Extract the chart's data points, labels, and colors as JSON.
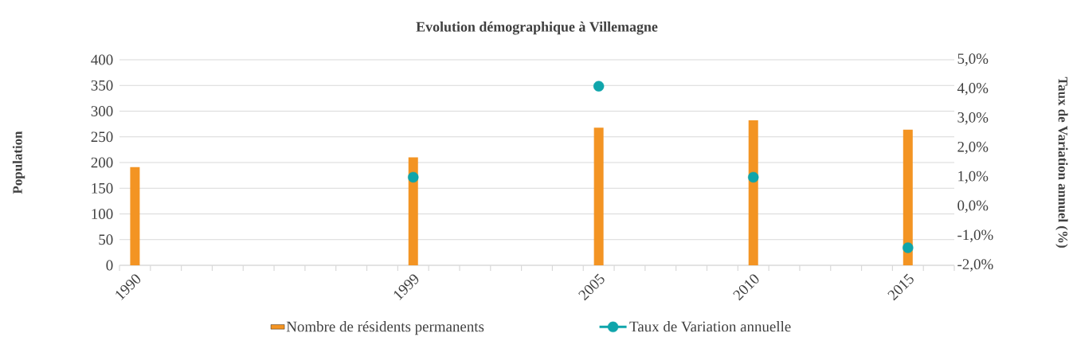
{
  "chart_data": {
    "type": "bar",
    "title": "Evolution démographique à Villemagne",
    "ylabel": "Population",
    "y2label": "Taux de Variation annuel (%)",
    "categories": [
      "1990",
      null,
      null,
      null,
      null,
      null,
      null,
      null,
      null,
      "1999",
      null,
      null,
      null,
      null,
      null,
      "2005",
      null,
      null,
      null,
      null,
      "2010",
      null,
      null,
      null,
      null,
      "2015",
      null
    ],
    "series": [
      {
        "name": "Nombre de résidents permanents",
        "color": "#f39423",
        "values": [
          191,
          null,
          null,
          null,
          null,
          null,
          null,
          null,
          null,
          210,
          null,
          null,
          null,
          null,
          null,
          268,
          null,
          null,
          null,
          null,
          282,
          null,
          null,
          null,
          null,
          264,
          null
        ]
      },
      {
        "name": "Taux de Variation annuelle",
        "type": "scatter",
        "axis": "y2",
        "color": "#0fa5ab",
        "values": [
          null,
          null,
          null,
          null,
          null,
          null,
          null,
          null,
          null,
          1.0,
          null,
          null,
          null,
          null,
          null,
          4.1,
          null,
          null,
          null,
          null,
          1.0,
          null,
          null,
          null,
          null,
          -1.4,
          null
        ]
      }
    ],
    "ylim": [
      0,
      400
    ],
    "yticks": [
      0,
      50,
      100,
      150,
      200,
      250,
      300,
      350,
      400
    ],
    "y2lim": [
      -2,
      5
    ],
    "y2ticks": [
      {
        "value": -2,
        "label": "-2,0%"
      },
      {
        "value": -1,
        "label": "-1,0%"
      },
      {
        "value": 0,
        "label": "0,0%"
      },
      {
        "value": 1,
        "label": "1,0%"
      },
      {
        "value": 2,
        "label": "2,0%"
      },
      {
        "value": 3,
        "label": "3,0%"
      },
      {
        "value": 4,
        "label": "4,0%"
      },
      {
        "value": 5,
        "label": "5,0%"
      }
    ],
    "grid": "y",
    "legend": "bottom",
    "marker": "circle"
  }
}
